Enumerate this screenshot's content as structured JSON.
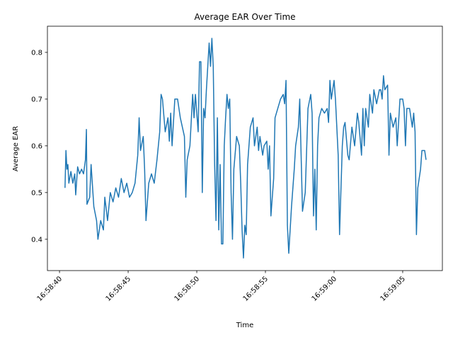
{
  "chart_data": {
    "type": "line",
    "title": "Average EAR Over Time",
    "x_label": "Time",
    "y_label": "Average EAR",
    "color": "#1f77b4",
    "x": [
      "16:58:40.40",
      "16:58:40.47",
      "16:58:40.54",
      "16:58:40.61",
      "16:58:40.68",
      "16:58:40.83",
      "16:58:40.97",
      "16:58:41.11",
      "16:58:41.18",
      "16:58:41.32",
      "16:58:41.46",
      "16:58:41.61",
      "16:58:41.75",
      "16:58:41.89",
      "16:58:41.96",
      "16:58:42.00",
      "16:58:42.20",
      "16:58:42.30",
      "16:58:42.50",
      "16:58:42.70",
      "16:58:42.80",
      "16:58:43.00",
      "16:58:43.20",
      "16:58:43.30",
      "16:58:43.50",
      "16:58:43.70",
      "16:58:43.90",
      "16:58:44.10",
      "16:58:44.30",
      "16:58:44.50",
      "16:58:44.70",
      "16:58:44.90",
      "16:58:45.10",
      "16:58:45.30",
      "16:58:45.50",
      "16:58:45.70",
      "16:58:45.80",
      "16:58:45.90",
      "16:58:46.10",
      "16:58:46.20",
      "16:58:46.30",
      "16:58:46.50",
      "16:58:46.70",
      "16:58:46.90",
      "16:58:47.10",
      "16:58:47.30",
      "16:58:47.40",
      "16:58:47.50",
      "16:58:47.70",
      "16:58:47.90",
      "16:58:48.00",
      "16:58:48.10",
      "16:58:48.20",
      "16:58:48.40",
      "16:58:48.60",
      "16:58:48.80",
      "16:58:49.10",
      "16:58:49.20",
      "16:58:49.30",
      "16:58:49.50",
      "16:58:49.70",
      "16:58:49.80",
      "16:58:49.90",
      "16:58:50.10",
      "16:58:50.20",
      "16:58:50.30",
      "16:58:50.40",
      "16:58:50.50",
      "16:58:50.60",
      "16:58:50.70",
      "16:58:50.90",
      "16:58:51.00",
      "16:58:51.10",
      "16:58:51.20",
      "16:58:51.30",
      "16:58:51.40",
      "16:58:51.50",
      "16:58:51.60",
      "16:58:51.70",
      "16:58:51.80",
      "16:58:51.90",
      "16:58:52.00",
      "16:58:52.10",
      "16:58:52.20",
      "16:58:52.30",
      "16:58:52.40",
      "16:58:52.50",
      "16:58:52.60",
      "16:58:52.70",
      "16:58:52.90",
      "16:58:53.10",
      "16:58:53.20",
      "16:58:53.30",
      "16:58:53.40",
      "16:58:53.50",
      "16:58:53.60",
      "16:58:53.70",
      "16:58:53.90",
      "16:58:54.10",
      "16:58:54.20",
      "16:58:54.40",
      "16:58:54.50",
      "16:58:54.60",
      "16:58:54.80",
      "16:58:54.90",
      "16:58:55.10",
      "16:58:55.20",
      "16:58:55.30",
      "16:58:55.40",
      "16:58:55.60",
      "16:58:55.70",
      "16:58:55.90",
      "16:58:56.10",
      "16:58:56.30",
      "16:58:56.40",
      "16:58:56.50",
      "16:58:56.60",
      "16:58:56.70",
      "16:58:56.80",
      "16:58:56.90",
      "16:58:57.10",
      "16:58:57.20",
      "16:58:57.40",
      "16:58:57.50",
      "16:58:57.70",
      "16:58:57.90",
      "16:58:58.10",
      "16:58:58.30",
      "16:58:58.40",
      "16:58:58.50",
      "16:58:58.60",
      "16:58:58.70",
      "16:58:58.80",
      "16:58:58.90",
      "16:58:59.10",
      "16:58:59.30",
      "16:58:59.50",
      "16:58:59.60",
      "16:58:59.70",
      "16:58:59.80",
      "16:59:00.00",
      "16:59:00.10",
      "16:59:00.30",
      "16:59:00.40",
      "16:59:00.60",
      "16:59:00.70",
      "16:59:00.80",
      "16:59:01.00",
      "16:59:01.10",
      "16:59:01.30",
      "16:59:01.50",
      "16:59:01.70",
      "16:59:01.80",
      "16:59:02.00",
      "16:59:02.10",
      "16:59:02.20",
      "16:59:02.30",
      "16:59:02.50",
      "16:59:02.60",
      "16:59:02.80",
      "16:59:02.90",
      "16:59:03.10",
      "16:59:03.30",
      "16:59:03.40",
      "16:59:03.50",
      "16:59:03.60",
      "16:59:03.70",
      "16:59:03.90",
      "16:59:04.00",
      "16:59:04.10",
      "16:59:04.30",
      "16:59:04.50",
      "16:59:04.60",
      "16:59:04.80",
      "16:59:05.00",
      "16:59:05.10",
      "16:59:05.20",
      "16:59:05.30",
      "16:59:05.50",
      "16:59:05.60",
      "16:59:05.70",
      "16:59:05.80",
      "16:59:05.90",
      "16:59:06.00",
      "16:59:06.10",
      "16:59:06.30",
      "16:59:06.40",
      "16:59:06.60",
      "16:59:06.70"
    ],
    "values": [
      0.51,
      0.59,
      0.55,
      0.56,
      0.52,
      0.545,
      0.52,
      0.54,
      0.495,
      0.555,
      0.54,
      0.55,
      0.54,
      0.57,
      0.635,
      0.475,
      0.49,
      0.56,
      0.47,
      0.44,
      0.4,
      0.44,
      0.42,
      0.49,
      0.44,
      0.5,
      0.48,
      0.51,
      0.49,
      0.53,
      0.5,
      0.52,
      0.49,
      0.5,
      0.52,
      0.58,
      0.66,
      0.59,
      0.62,
      0.55,
      0.44,
      0.52,
      0.54,
      0.52,
      0.57,
      0.63,
      0.71,
      0.7,
      0.63,
      0.66,
      0.61,
      0.67,
      0.6,
      0.7,
      0.7,
      0.66,
      0.62,
      0.49,
      0.57,
      0.6,
      0.71,
      0.66,
      0.71,
      0.63,
      0.78,
      0.78,
      0.5,
      0.68,
      0.66,
      0.72,
      0.82,
      0.77,
      0.83,
      0.77,
      0.56,
      0.44,
      0.66,
      0.42,
      0.56,
      0.39,
      0.39,
      0.6,
      0.66,
      0.71,
      0.68,
      0.7,
      0.5,
      0.4,
      0.55,
      0.62,
      0.6,
      0.52,
      0.42,
      0.36,
      0.43,
      0.41,
      0.56,
      0.64,
      0.66,
      0.6,
      0.64,
      0.59,
      0.62,
      0.58,
      0.6,
      0.61,
      0.55,
      0.6,
      0.45,
      0.53,
      0.66,
      0.68,
      0.7,
      0.71,
      0.69,
      0.74,
      0.43,
      0.37,
      0.42,
      0.47,
      0.55,
      0.6,
      0.64,
      0.7,
      0.46,
      0.5,
      0.68,
      0.71,
      0.67,
      0.45,
      0.55,
      0.42,
      0.6,
      0.66,
      0.68,
      0.67,
      0.68,
      0.65,
      0.74,
      0.7,
      0.74,
      0.7,
      0.58,
      0.41,
      0.6,
      0.64,
      0.65,
      0.58,
      0.57,
      0.64,
      0.6,
      0.67,
      0.65,
      0.58,
      0.68,
      0.6,
      0.68,
      0.64,
      0.71,
      0.67,
      0.72,
      0.69,
      0.72,
      0.72,
      0.7,
      0.75,
      0.72,
      0.73,
      0.58,
      0.67,
      0.64,
      0.66,
      0.6,
      0.7,
      0.7,
      0.68,
      0.6,
      0.68,
      0.68,
      0.66,
      0.64,
      0.67,
      0.63,
      0.41,
      0.51,
      0.55,
      0.59,
      0.59,
      0.57
    ],
    "xlim": [
      "16:58:39.12",
      "16:59:07.89"
    ],
    "xticks": [
      "16:58:40",
      "16:58:45",
      "16:58:50",
      "16:58:55",
      "16:59:00",
      "16:59:05"
    ],
    "ylim": [
      0.333,
      0.856
    ],
    "yticks": [
      0.4,
      0.5,
      0.6,
      0.7,
      0.8
    ]
  }
}
